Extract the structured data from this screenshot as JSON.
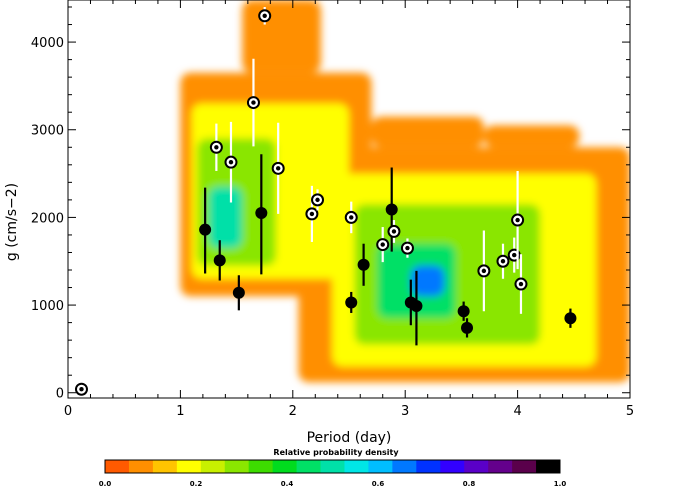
{
  "chart_data": {
    "type": "scatter",
    "title": "",
    "xlabel": "Period (day)",
    "ylabel": "g (cm/s−2)",
    "xlim": [
      0,
      5
    ],
    "ylim": [
      -60,
      4480
    ],
    "xticks": [
      0,
      1,
      2,
      3,
      4,
      5
    ],
    "yticks": [
      0,
      1000,
      2000,
      3000,
      4000
    ],
    "grid": false,
    "background": {
      "kind": "probability-density-heatmap",
      "note_colorscale_low": "#ff5a00",
      "regions": [
        {
          "xr": [
            1.0,
            2.7
          ],
          "yr": [
            1100,
            3650
          ],
          "level": 0.05
        },
        {
          "xr": [
            1.55,
            2.25
          ],
          "yr": [
            3650,
            4480
          ],
          "level": 0.03
        },
        {
          "xr": [
            2.05,
            5.0
          ],
          "yr": [
            120,
            2800
          ],
          "level": 0.05
        },
        {
          "xr": [
            2.7,
            3.7
          ],
          "yr": [
            2800,
            3150
          ],
          "level": 0.03
        },
        {
          "xr": [
            3.7,
            4.55
          ],
          "yr": [
            2800,
            3050
          ],
          "level": 0.03
        },
        {
          "xr": [
            1.1,
            2.5
          ],
          "yr": [
            1300,
            3300
          ],
          "level": 0.15
        },
        {
          "xr": [
            2.35,
            4.7
          ],
          "yr": [
            300,
            2500
          ],
          "level": 0.15
        },
        {
          "xr": [
            1.15,
            1.85
          ],
          "yr": [
            1450,
            2900
          ],
          "level": 0.27
        },
        {
          "xr": [
            2.55,
            4.2
          ],
          "yr": [
            550,
            2150
          ],
          "level": 0.3
        },
        {
          "xr": [
            1.25,
            1.55
          ],
          "yr": [
            1650,
            2350
          ],
          "level": 0.5
        },
        {
          "xr": [
            2.75,
            3.45
          ],
          "yr": [
            850,
            1700
          ],
          "level": 0.45
        },
        {
          "xr": [
            3.05,
            3.35
          ],
          "yr": [
            1100,
            1450
          ],
          "level": 0.68
        }
      ]
    },
    "series": [
      {
        "marker": "filled-circle",
        "errorbar_color": "#000000",
        "points": [
          {
            "x": 1.22,
            "y": 1860,
            "yerr": [
              500,
              480
            ]
          },
          {
            "x": 1.35,
            "y": 1510,
            "yerr": [
              230,
              230
            ]
          },
          {
            "x": 1.52,
            "y": 1140,
            "yerr": [
              200,
              200
            ]
          },
          {
            "x": 1.72,
            "y": 2050,
            "yerr": [
              700,
              670
            ]
          },
          {
            "x": 2.52,
            "y": 1030,
            "yerr": [
              120,
              120
            ]
          },
          {
            "x": 2.63,
            "y": 1460,
            "yerr": [
              240,
              240
            ]
          },
          {
            "x": 2.88,
            "y": 2090,
            "yerr": [
              480,
              480
            ]
          },
          {
            "x": 3.05,
            "y": 1030,
            "yerr": [
              260,
              260
            ]
          },
          {
            "x": 3.1,
            "y": 990,
            "yerr": [
              450,
              400
            ]
          },
          {
            "x": 3.52,
            "y": 930,
            "yerr": [
              110,
              110
            ]
          },
          {
            "x": 3.55,
            "y": 740,
            "yerr": [
              110,
              110
            ]
          },
          {
            "x": 4.47,
            "y": 850,
            "yerr": [
              110,
              110
            ]
          }
        ]
      },
      {
        "marker": "open-circle",
        "errorbar_color": "#ffffff",
        "points": [
          {
            "x": 0.12,
            "y": 40,
            "yerr": [
              0,
              0
            ]
          },
          {
            "x": 1.32,
            "y": 2800,
            "yerr": [
              270,
              270
            ]
          },
          {
            "x": 1.45,
            "y": 2630,
            "yerr": [
              460,
              460
            ]
          },
          {
            "x": 1.65,
            "y": 3310,
            "yerr": [
              500,
              500
            ]
          },
          {
            "x": 1.75,
            "y": 4300,
            "yerr": [
              100,
              100
            ]
          },
          {
            "x": 1.87,
            "y": 2560,
            "yerr": [
              520,
              520
            ]
          },
          {
            "x": 2.17,
            "y": 2040,
            "yerr": [
              320,
              320
            ]
          },
          {
            "x": 2.22,
            "y": 2200,
            "yerr": [
              120,
              120
            ]
          },
          {
            "x": 2.52,
            "y": 2000,
            "yerr": [
              180,
              180
            ]
          },
          {
            "x": 2.8,
            "y": 1690,
            "yerr": [
              200,
              200
            ]
          },
          {
            "x": 2.9,
            "y": 1840,
            "yerr": [
              130,
              130
            ]
          },
          {
            "x": 3.02,
            "y": 1650,
            "yerr": [
              110,
              110
            ]
          },
          {
            "x": 3.7,
            "y": 1390,
            "yerr": [
              460,
              460
            ]
          },
          {
            "x": 3.87,
            "y": 1500,
            "yerr": [
              200,
              200
            ]
          },
          {
            "x": 3.97,
            "y": 1570,
            "yerr": [
              200,
              200
            ]
          },
          {
            "x": 4.0,
            "y": 1970,
            "yerr": [
              560,
              560
            ]
          },
          {
            "x": 4.03,
            "y": 1240,
            "yerr": [
              340,
              340
            ]
          }
        ]
      }
    ],
    "colorbar": {
      "title": "Relative probability density",
      "range": [
        0.0,
        1.0
      ],
      "tick_labels": [
        "0.0",
        "0.2",
        "0.4",
        "0.6",
        "0.8",
        "1.0"
      ],
      "colors": [
        "#ff5a00",
        "#ff8f00",
        "#ffc400",
        "#ffff00",
        "#c8f000",
        "#8ae600",
        "#3ddc00",
        "#00dc1e",
        "#00e066",
        "#00e0a8",
        "#00e6e6",
        "#00beff",
        "#0078ff",
        "#0032ff",
        "#3200ff",
        "#5a00c8",
        "#64008c",
        "#5a004b",
        "#000000"
      ]
    }
  }
}
